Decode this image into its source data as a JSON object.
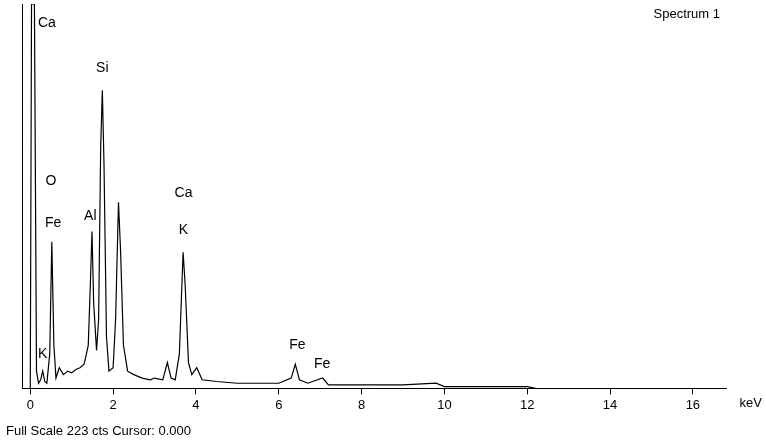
{
  "chart_data": {
    "type": "line",
    "title": "Spectrum 1",
    "x_label": "keV",
    "footer": "Full Scale 223 cts Cursor: 0.000",
    "x": [
      0.0,
      0.03,
      0.1,
      0.15,
      0.2,
      0.25,
      0.3,
      0.35,
      0.4,
      0.47,
      0.52,
      0.57,
      0.62,
      0.7,
      0.8,
      0.9,
      1.0,
      1.1,
      1.2,
      1.3,
      1.4,
      1.45,
      1.49,
      1.53,
      1.6,
      1.65,
      1.7,
      1.74,
      1.78,
      1.84,
      1.9,
      2.0,
      2.06,
      2.13,
      2.18,
      2.25,
      2.35,
      2.5,
      2.7,
      2.9,
      3.0,
      3.2,
      3.31,
      3.4,
      3.5,
      3.6,
      3.69,
      3.74,
      3.82,
      3.9,
      4.02,
      4.15,
      4.5,
      5.0,
      5.5,
      6.0,
      6.3,
      6.4,
      6.5,
      6.7,
      7.06,
      7.2,
      8.0,
      9.0,
      9.8,
      10.0,
      11.0,
      12.0,
      12.2
    ],
    "values": [
      0,
      223,
      223,
      10,
      3,
      5,
      10,
      4,
      3,
      20,
      85,
      25,
      6,
      12,
      8,
      10,
      9,
      11,
      12,
      14,
      25,
      60,
      91,
      50,
      22,
      40,
      140,
      173,
      130,
      30,
      10,
      12,
      40,
      108,
      80,
      25,
      10,
      8,
      6,
      5,
      6,
      5,
      15,
      6,
      5,
      20,
      79,
      60,
      15,
      8,
      12,
      5,
      4,
      3,
      3,
      3,
      6,
      14,
      5,
      3,
      6,
      2,
      2,
      2,
      3,
      1,
      1,
      1,
      0
    ],
    "color": "#000000",
    "xlim": [
      -0.2,
      16.8
    ],
    "ylim": [
      0,
      223
    ],
    "xticks": [
      0,
      2,
      4,
      6,
      8,
      10,
      12,
      14,
      16
    ],
    "tick_labels": "x",
    "grid": false,
    "annotations": [
      {
        "text": "Ca",
        "x": 0.4,
        "y": 212
      },
      {
        "text": "Si",
        "x": 1.74,
        "y": 186
      },
      {
        "text": "O",
        "x": 0.5,
        "y": 120
      },
      {
        "text": "Fe",
        "x": 0.55,
        "y": 96
      },
      {
        "text": "Al",
        "x": 1.45,
        "y": 100
      },
      {
        "text": "Ca",
        "x": 3.7,
        "y": 113
      },
      {
        "text": "K",
        "x": 3.7,
        "y": 92
      },
      {
        "text": "Fe",
        "x": 6.45,
        "y": 25
      },
      {
        "text": "Fe",
        "x": 7.05,
        "y": 14
      },
      {
        "text": "K",
        "x": 0.3,
        "y": 20
      }
    ]
  }
}
